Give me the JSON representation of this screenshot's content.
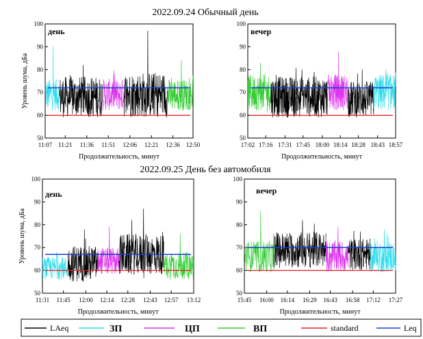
{
  "headers": [
    "2022.09.24  Обычный день",
    "2022.09.25  День без автомобиля"
  ],
  "legend": [
    "LAeq",
    "ЗП",
    "ЦП",
    "ВП",
    "standard",
    "Leq"
  ],
  "colors": {
    "LAeq": "#000000",
    "ЗП": "#33ddee",
    "ЦП": "#dd33ee",
    "ВП": "#33cc33",
    "standard": "#e02020",
    "Leq": "#1a3fd0"
  },
  "chart_data": [
    {
      "type": "line",
      "label": "день",
      "xlabel": "Продолжительность, минут",
      "ylabel": "Уровень шума, дБа",
      "ylim": [
        50,
        100
      ],
      "yticks": [
        50,
        60,
        70,
        80,
        90,
        100
      ],
      "xticks": [
        "11:07",
        "11:21",
        "11:36",
        "11:51",
        "12:06",
        "12:21",
        "12:36",
        "12:50"
      ],
      "segments": [
        {
          "series": "ЗП",
          "from": "11:07",
          "to": "11:17",
          "mean": 69,
          "spread": 7,
          "peak": 90
        },
        {
          "series": "LAeq",
          "from": "11:17",
          "to": "11:47",
          "mean": 68,
          "spread": 9,
          "peak": 82
        },
        {
          "series": "ЦП",
          "from": "11:47",
          "to": "12:02",
          "mean": 69,
          "spread": 7,
          "peak": 78
        },
        {
          "series": "LAeq",
          "from": "12:02",
          "to": "12:32",
          "mean": 69,
          "spread": 10,
          "peak": 97
        },
        {
          "series": "ВП",
          "from": "12:32",
          "to": "12:50",
          "mean": 69,
          "spread": 7,
          "peak": 84
        }
      ],
      "standard": 60,
      "leq": 72
    },
    {
      "type": "line",
      "label": "вечер",
      "xlabel": "Продолжительность, минут",
      "ylabel": "",
      "ylim": [
        50,
        100
      ],
      "yticks": [
        50,
        60,
        70,
        80,
        90,
        100
      ],
      "xticks": [
        "17:02",
        "17:16",
        "17:31",
        "17:45",
        "18:00",
        "18:14",
        "18:28",
        "18:43",
        "18:57"
      ],
      "segments": [
        {
          "series": "ВП",
          "from": "17:02",
          "to": "17:20",
          "mean": 70,
          "spread": 8,
          "peak": 83
        },
        {
          "series": "LAeq",
          "from": "17:20",
          "to": "18:04",
          "mean": 68,
          "spread": 9,
          "peak": 80
        },
        {
          "series": "ЦП",
          "from": "18:04",
          "to": "18:20",
          "mean": 70,
          "spread": 8,
          "peak": 88
        },
        {
          "series": "LAeq",
          "from": "18:20",
          "to": "18:40",
          "mean": 67,
          "spread": 8,
          "peak": 80
        },
        {
          "series": "ЗП",
          "from": "18:40",
          "to": "18:57",
          "mean": 70,
          "spread": 8,
          "peak": 80
        }
      ],
      "standard": 60,
      "leq": 72
    },
    {
      "type": "line",
      "label": "день",
      "xlabel": "Продолжительность, минут",
      "ylabel": "Уровень шума, дБа",
      "ylim": [
        50,
        100
      ],
      "yticks": [
        50,
        60,
        70,
        80,
        90,
        100
      ],
      "xticks": [
        "11:31",
        "11:45",
        "12:00",
        "12:14",
        "12:28",
        "12:43",
        "12:57",
        "13:12"
      ],
      "segments": [
        {
          "series": "ЗП",
          "from": "11:31",
          "to": "11:48",
          "mean": 61,
          "spread": 5,
          "peak": 68
        },
        {
          "series": "LAeq",
          "from": "11:48",
          "to": "12:08",
          "mean": 63,
          "spread": 8,
          "peak": 78
        },
        {
          "series": "ЦП",
          "from": "12:08",
          "to": "12:22",
          "mean": 64,
          "spread": 6,
          "peak": 79
        },
        {
          "series": "LAeq",
          "from": "12:22",
          "to": "12:52",
          "mean": 67,
          "spread": 9,
          "peak": 87
        },
        {
          "series": "ВП",
          "from": "12:52",
          "to": "13:12",
          "mean": 62,
          "spread": 6,
          "peak": 76
        }
      ],
      "standard": 60,
      "leq": 67
    },
    {
      "type": "line",
      "label": "вечер",
      "xlabel": "Продолжительность, минут",
      "ylabel": "",
      "ylim": [
        50,
        100
      ],
      "yticks": [
        50,
        60,
        70,
        80,
        90,
        100
      ],
      "xticks": [
        "15:45",
        "16:00",
        "16:14",
        "16:29",
        "16:43",
        "16:58",
        "17:12",
        "17:27"
      ],
      "segments": [
        {
          "series": "ВП",
          "from": "15:45",
          "to": "16:05",
          "mean": 66,
          "spread": 7,
          "peak": 86
        },
        {
          "series": "LAeq",
          "from": "16:05",
          "to": "16:40",
          "mean": 69,
          "spread": 8,
          "peak": 82
        },
        {
          "series": "ЦП",
          "from": "16:40",
          "to": "16:55",
          "mean": 66,
          "spread": 7,
          "peak": 79
        },
        {
          "series": "LAeq",
          "from": "16:55",
          "to": "17:10",
          "mean": 67,
          "spread": 7,
          "peak": 77
        },
        {
          "series": "ЗП",
          "from": "17:10",
          "to": "17:27",
          "mean": 66,
          "spread": 7,
          "peak": 78
        }
      ],
      "standard": 60,
      "leq": 70
    }
  ]
}
